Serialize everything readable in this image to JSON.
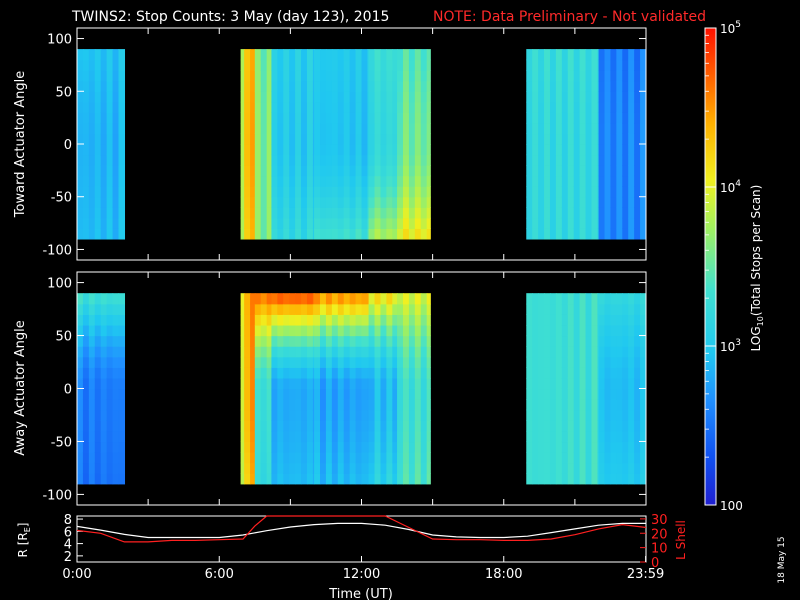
{
  "header": {
    "title": "TWINS2: Stop Counts:  3 May (day 123), 2015",
    "note": "NOTE: Data Preliminary - Not validated"
  },
  "footer": {
    "date_stamp": "18 May 15"
  },
  "colors": {
    "background": "#000000",
    "axes": "#ffffff",
    "note": "#ff2a2a",
    "r_line": "#ffffff",
    "lshell_line": "#ff2020"
  },
  "chart_data": [
    {
      "type": "heatmap",
      "name": "toward",
      "ylabel": "Toward Actuator Angle",
      "xlim": [
        0,
        24
      ],
      "ylim": [
        -110,
        110
      ],
      "yticks": [
        -100,
        -50,
        0,
        50,
        100
      ],
      "data_angle_range": [
        -90,
        90
      ],
      "coverage_hours": [
        [
          0,
          2.0
        ],
        [
          6.9,
          14.9
        ],
        [
          18.95,
          24
        ]
      ],
      "segments": [
        {
          "t0": 0.0,
          "t1": 2.0,
          "base_log": 2.85,
          "top_log": 2.95,
          "bottom_log": 2.9
        },
        {
          "t0": 6.9,
          "t1": 7.05,
          "base_log": 3.95,
          "top_log": 3.9,
          "bottom_log": 3.9
        },
        {
          "t0": 7.05,
          "t1": 7.5,
          "base_log": 4.4,
          "top_log": 4.35,
          "bottom_log": 4.3
        },
        {
          "t0": 7.5,
          "t1": 8.2,
          "base_log": 3.6,
          "top_log": 3.55,
          "bottom_log": 3.6
        },
        {
          "t0": 8.2,
          "t1": 10.0,
          "base_log": 3.0,
          "top_log": 3.05,
          "bottom_log": 3.2
        },
        {
          "t0": 10.0,
          "t1": 12.3,
          "base_log": 2.95,
          "top_log": 3.0,
          "bottom_log": 3.35
        },
        {
          "t0": 12.3,
          "t1": 13.5,
          "base_log": 3.2,
          "top_log": 3.3,
          "bottom_log": 3.8
        },
        {
          "t0": 13.5,
          "t1": 14.9,
          "base_log": 3.55,
          "top_log": 3.4,
          "bottom_log": 4.1
        },
        {
          "t0": 18.95,
          "t1": 22.0,
          "base_log": 3.2,
          "top_log": 3.25,
          "bottom_log": 3.2
        },
        {
          "t0": 22.0,
          "t1": 24.0,
          "base_log": 2.6,
          "top_log": 2.55,
          "bottom_log": 2.6
        }
      ]
    },
    {
      "type": "heatmap",
      "name": "away",
      "ylabel": "Away Actuator Angle",
      "xlim": [
        0,
        24
      ],
      "ylim": [
        -110,
        110
      ],
      "yticks": [
        -100,
        -50,
        0,
        50,
        100
      ],
      "data_angle_range": [
        -90,
        90
      ],
      "coverage_hours": [
        [
          0,
          2.0
        ],
        [
          6.9,
          14.9
        ],
        [
          18.95,
          24
        ]
      ],
      "segments": [
        {
          "t0": 0.0,
          "t1": 2.0,
          "base_log": 2.55,
          "top_log": 3.35,
          "bottom_log": 2.5
        },
        {
          "t0": 6.9,
          "t1": 7.05,
          "base_log": 4.0,
          "top_log": 4.1,
          "bottom_log": 3.9
        },
        {
          "t0": 7.05,
          "t1": 7.5,
          "base_log": 4.45,
          "top_log": 4.5,
          "bottom_log": 4.3
        },
        {
          "t0": 7.5,
          "t1": 8.2,
          "base_log": 3.3,
          "top_log": 4.7,
          "bottom_log": 3.2
        },
        {
          "t0": 8.2,
          "t1": 10.0,
          "base_log": 2.8,
          "top_log": 4.85,
          "bottom_log": 2.9
        },
        {
          "t0": 10.0,
          "t1": 12.3,
          "base_log": 2.75,
          "top_log": 4.6,
          "bottom_log": 2.9
        },
        {
          "t0": 12.3,
          "t1": 13.5,
          "base_log": 2.9,
          "top_log": 4.2,
          "bottom_log": 3.1
        },
        {
          "t0": 13.5,
          "t1": 14.9,
          "base_log": 3.3,
          "top_log": 4.0,
          "bottom_log": 3.4
        },
        {
          "t0": 18.95,
          "t1": 22.0,
          "base_log": 3.3,
          "top_log": 3.3,
          "bottom_log": 3.3
        },
        {
          "t0": 22.0,
          "t1": 24.0,
          "base_log": 2.9,
          "top_log": 3.2,
          "bottom_log": 3.0
        }
      ]
    },
    {
      "type": "line",
      "name": "ephemeris",
      "xlabel": "Time (UT)",
      "xlim": [
        0,
        24
      ],
      "xticks": [
        0,
        6,
        12,
        18,
        23.983
      ],
      "xtick_labels": [
        "0:00",
        "6:00",
        "12:00",
        "18:00",
        "23:59"
      ],
      "ylabel_left": "R [R",
      "ylabel_left_sub": "E",
      "ylabel_left_end": "]",
      "ylim_left": [
        1,
        8.5
      ],
      "yticks_left": [
        2,
        4,
        6,
        8
      ],
      "ylabel_right": "L Shell",
      "ylim_right": [
        0,
        32
      ],
      "yticks_right": [
        0,
        10,
        20,
        30
      ],
      "series": [
        {
          "name": "R",
          "axis": "left",
          "x": [
            0,
            1,
            2,
            3,
            4,
            5,
            6,
            7,
            8,
            9,
            10,
            11,
            12,
            13,
            14,
            15,
            16,
            17,
            18,
            19,
            20,
            21,
            22,
            23,
            24
          ],
          "y": [
            6.8,
            6.2,
            5.5,
            5.0,
            5.0,
            5.0,
            5.0,
            5.4,
            6.1,
            6.7,
            7.1,
            7.3,
            7.3,
            7.0,
            6.3,
            5.4,
            5.1,
            5.0,
            5.0,
            5.2,
            5.8,
            6.4,
            7.0,
            7.3,
            7.3
          ]
        },
        {
          "name": "L Shell",
          "axis": "right",
          "x": [
            0,
            1,
            2,
            3,
            4,
            5,
            6,
            7,
            7.5,
            8,
            12,
            13,
            14,
            15,
            16,
            17,
            18,
            19,
            20,
            21,
            22,
            23,
            24
          ],
          "y": [
            22,
            20,
            14,
            14,
            15,
            15,
            15.5,
            16,
            25,
            32,
            32,
            32,
            24,
            16,
            15.5,
            15.5,
            15,
            15,
            16,
            19,
            23,
            26,
            24
          ]
        }
      ]
    }
  ],
  "colorbar": {
    "label_log": "LOG",
    "label_sub": "10",
    "label_rest": "(Total Stops per Scan)",
    "range_log": [
      2,
      5
    ],
    "ticks": [
      {
        "log": 2,
        "label": "100"
      },
      {
        "log": 3,
        "base": "10",
        "exp": "3"
      },
      {
        "log": 4,
        "base": "10",
        "exp": "4"
      },
      {
        "log": 5,
        "base": "10",
        "exp": "5"
      }
    ]
  }
}
